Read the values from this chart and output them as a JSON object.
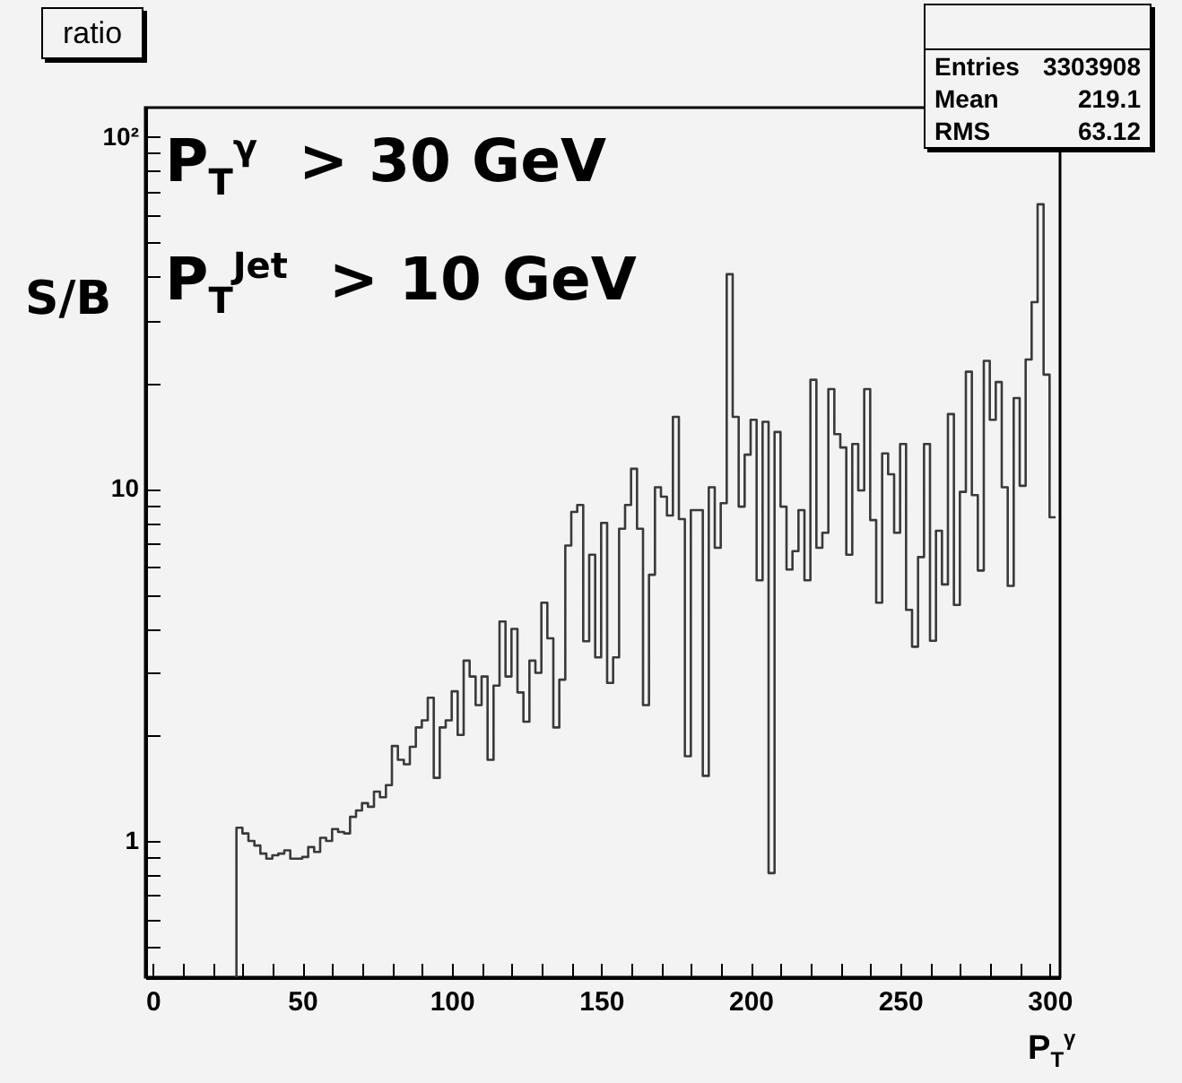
{
  "chart_data": {
    "type": "histogram",
    "title": "ratio",
    "ylabel": "S/B",
    "xlabel": "P$_{T}$$^{γ}$",
    "annotations": [
      "P$_{T}$$^{γ}$  > 30 GeV",
      "P$_{T}$$^{Jet}$  > 10 GeV",
      "Entries 3303908",
      "Mean 219.1",
      "RMS 63.12"
    ],
    "bins": [
      28,
      30,
      32,
      34,
      36,
      38,
      40,
      42,
      44,
      46,
      48,
      50,
      52,
      54,
      56,
      58,
      60,
      62,
      64,
      66,
      68,
      70,
      72,
      74,
      76,
      78,
      80,
      82,
      84,
      86,
      88,
      90,
      92,
      94,
      96,
      98,
      100,
      102,
      104,
      106,
      108,
      110,
      112,
      114,
      116,
      118,
      120,
      122,
      124,
      126,
      128,
      130,
      132,
      134,
      136,
      138,
      140,
      142,
      144,
      146,
      148,
      150,
      152,
      154,
      156,
      158,
      160,
      162,
      164,
      166,
      168,
      170,
      172,
      174,
      176,
      178,
      180,
      182,
      184,
      186,
      188,
      190,
      192,
      194,
      196,
      198,
      200,
      202,
      204,
      206,
      208,
      210,
      212,
      214,
      216,
      218,
      220,
      222,
      224,
      226,
      228,
      230,
      232,
      234,
      236,
      238,
      240,
      242,
      244,
      246,
      248,
      250,
      252,
      254,
      256,
      258,
      260,
      262,
      264,
      266,
      268,
      270,
      272,
      274,
      276,
      278,
      280,
      282,
      284,
      286,
      288,
      290,
      292,
      294,
      296,
      298,
      300,
      302
    ],
    "values": [
      1.09,
      1.05,
      1.0,
      0.97,
      0.92,
      0.89,
      0.91,
      0.92,
      0.94,
      0.89,
      0.89,
      0.9,
      0.96,
      0.93,
      1.02,
      1.0,
      1.08,
      1.06,
      1.05,
      1.17,
      1.22,
      1.28,
      1.25,
      1.38,
      1.33,
      1.44,
      1.86,
      1.7,
      1.65,
      1.85,
      2.1,
      2.2,
      2.55,
      1.51,
      2.1,
      2.2,
      2.66,
      2.0,
      3.25,
      2.93,
      2.43,
      2.93,
      1.7,
      2.76,
      4.2,
      2.93,
      4.0,
      2.64,
      2.18,
      3.25,
      3.0,
      4.75,
      3.76,
      2.1,
      2.87,
      6.9,
      8.6,
      9.0,
      3.69,
      6.5,
      3.32,
      8.0,
      2.81,
      3.32,
      7.7,
      9.0,
      11.4,
      7.7,
      2.43,
      5.7,
      10.1,
      9.5,
      8.4,
      16.0,
      8.2,
      1.74,
      8.7,
      8.7,
      1.53,
      10.1,
      6.8,
      9.1,
      40.7,
      16.0,
      8.9,
      12.5,
      15.7,
      5.5,
      15.5,
      0.81,
      14.5,
      8.9,
      5.9,
      6.65,
      8.7,
      5.5,
      20.4,
      6.8,
      7.5,
      19.2,
      14.3,
      13.1,
      6.5,
      13.4,
      9.9,
      19.2,
      8.15,
      4.75,
      12.6,
      11.0,
      7.5,
      13.4,
      4.53,
      3.56,
      6.4,
      13.4,
      3.7,
      7.6,
      5.35,
      16.3,
      4.68,
      9.8,
      21.5,
      9.6,
      5.86,
      23.1,
      15.7,
      20.1,
      10.1,
      5.3,
      18.1,
      10.2,
      23.3,
      33.9,
      64.3,
      21.1,
      8.3
    ],
    "color": "#3a3a3a",
    "log": "y",
    "xlim": [
      -2.5,
      303.5
    ],
    "xticks": [
      0,
      {
        "value": 10,
        "label": null
      },
      {
        "value": 20,
        "label": null
      },
      {
        "value": 30,
        "label": null
      },
      {
        "value": 40,
        "label": null
      },
      50,
      {
        "value": 60,
        "label": null
      },
      {
        "value": 70,
        "label": null
      },
      {
        "value": 80,
        "label": null
      },
      {
        "value": 90,
        "label": null
      },
      100,
      {
        "value": 110,
        "label": null
      },
      {
        "value": 120,
        "label": null
      },
      {
        "value": 130,
        "label": null
      },
      {
        "value": 140,
        "label": null
      },
      150,
      {
        "value": 160,
        "label": null
      },
      {
        "value": 170,
        "label": null
      },
      {
        "value": 180,
        "label": null
      },
      {
        "value": 190,
        "label": null
      },
      200,
      {
        "value": 210,
        "label": null
      },
      {
        "value": 220,
        "label": null
      },
      {
        "value": 230,
        "label": null
      },
      {
        "value": 240,
        "label": null
      },
      250,
      {
        "value": 260,
        "label": null
      },
      {
        "value": 270,
        "label": null
      },
      {
        "value": 280,
        "label": null
      },
      {
        "value": 290,
        "label": null
      },
      300
    ],
    "ylim": [
      0.41,
      121
    ],
    "yticks": [
      {
        "value": 0.5,
        "label": null
      },
      {
        "value": 0.6,
        "label": null
      },
      {
        "value": 0.7,
        "label": null
      },
      {
        "value": 0.8,
        "label": null
      },
      {
        "value": 0.9,
        "label": null
      },
      1,
      {
        "value": 2,
        "label": null
      },
      {
        "value": 3,
        "label": null
      },
      {
        "value": 4,
        "label": null
      },
      {
        "value": 5,
        "label": null
      },
      {
        "value": 6,
        "label": null
      },
      {
        "value": 7,
        "label": null
      },
      {
        "value": 8,
        "label": null
      },
      {
        "value": 9,
        "label": null
      },
      10,
      {
        "value": 20,
        "label": null
      },
      {
        "value": 30,
        "label": null
      },
      {
        "value": 40,
        "label": null
      },
      {
        "value": 50,
        "label": null
      },
      {
        "value": 60,
        "label": null
      },
      {
        "value": 70,
        "label": null
      },
      {
        "value": 80,
        "label": null
      },
      {
        "value": 90,
        "label": null
      },
      {
        "value": 100,
        "label": "10²"
      }
    ]
  }
}
